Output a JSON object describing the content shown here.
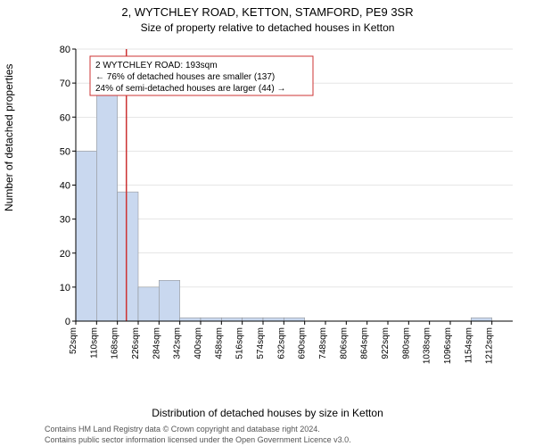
{
  "title_line1": "2, WYTCHLEY ROAD, KETTON, STAMFORD, PE9 3SR",
  "title_line2": "Size of property relative to detached houses in Ketton",
  "ylabel": "Number of detached properties",
  "xlabel": "Distribution of detached houses by size in Ketton",
  "footer1": "Contains HM Land Registry data © Crown copyright and database right 2024.",
  "footer2": "Contains public sector information licensed under the Open Government Licence v3.0.",
  "annotation": {
    "line1": "2 WYTCHLEY ROAD: 193sqm",
    "line2": "← 76% of detached houses are smaller (137)",
    "line3": "24% of semi-detached houses are larger (44) →"
  },
  "chart": {
    "type": "histogram",
    "ylim": [
      0,
      80
    ],
    "ytick_step": 10,
    "xtick_start": 52,
    "xtick_step": 58,
    "xtick_count": 21,
    "xtick_suffix": "sqm",
    "reference_x": 193,
    "bar_width_units": 58,
    "bar_fill": "#c9d8ef",
    "annotation_border": "#cc3333",
    "reference_line_color": "#cc3333",
    "grid_color": "#cccccc",
    "background": "#ffffff",
    "bars": [
      {
        "x_start": 52,
        "value": 50
      },
      {
        "x_start": 110,
        "value": 68
      },
      {
        "x_start": 168,
        "value": 38
      },
      {
        "x_start": 226,
        "value": 10
      },
      {
        "x_start": 284,
        "value": 12
      },
      {
        "x_start": 342,
        "value": 1
      },
      {
        "x_start": 400,
        "value": 1
      },
      {
        "x_start": 458,
        "value": 1
      },
      {
        "x_start": 516,
        "value": 1
      },
      {
        "x_start": 574,
        "value": 1
      },
      {
        "x_start": 632,
        "value": 1
      },
      {
        "x_start": 690,
        "value": 0
      },
      {
        "x_start": 748,
        "value": 0
      },
      {
        "x_start": 806,
        "value": 0
      },
      {
        "x_start": 864,
        "value": 0
      },
      {
        "x_start": 922,
        "value": 0
      },
      {
        "x_start": 980,
        "value": 0
      },
      {
        "x_start": 1038,
        "value": 0
      },
      {
        "x_start": 1096,
        "value": 0
      },
      {
        "x_start": 1154,
        "value": 1
      }
    ],
    "title_fontsize": 13,
    "subtitle_fontsize": 12,
    "label_fontsize": 12,
    "tick_fontsize": 11,
    "xtick_fontsize": 10,
    "annot_fontsize": 10,
    "footer_fontsize": 9
  }
}
